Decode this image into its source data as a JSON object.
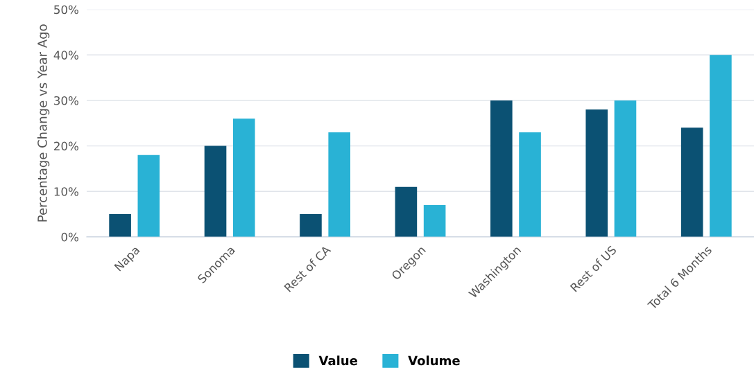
{
  "chart_data": {
    "type": "bar",
    "ylabel": "Percentage Change vs Year Ago",
    "categories": [
      "Napa",
      "Sonoma",
      "Rest of CA",
      "Oregon",
      "Washington",
      "Rest of US",
      "Total 6 Months"
    ],
    "series": [
      {
        "name": "Value",
        "color": "#0b5173",
        "values": [
          5,
          20,
          5,
          11,
          30,
          28,
          24
        ]
      },
      {
        "name": "Volume",
        "color": "#29b2d5",
        "values": [
          18,
          26,
          23,
          7,
          23,
          30,
          40
        ]
      }
    ],
    "ylim": [
      0,
      50
    ],
    "yticks": [
      {
        "value": 0,
        "label": "0%"
      },
      {
        "value": 10,
        "label": "10%"
      },
      {
        "value": 20,
        "label": "20%"
      },
      {
        "value": 30,
        "label": "30%"
      },
      {
        "value": 40,
        "label": "40%"
      },
      {
        "value": 50,
        "label": "50%"
      }
    ],
    "grid": "y",
    "legend": "bottom"
  }
}
